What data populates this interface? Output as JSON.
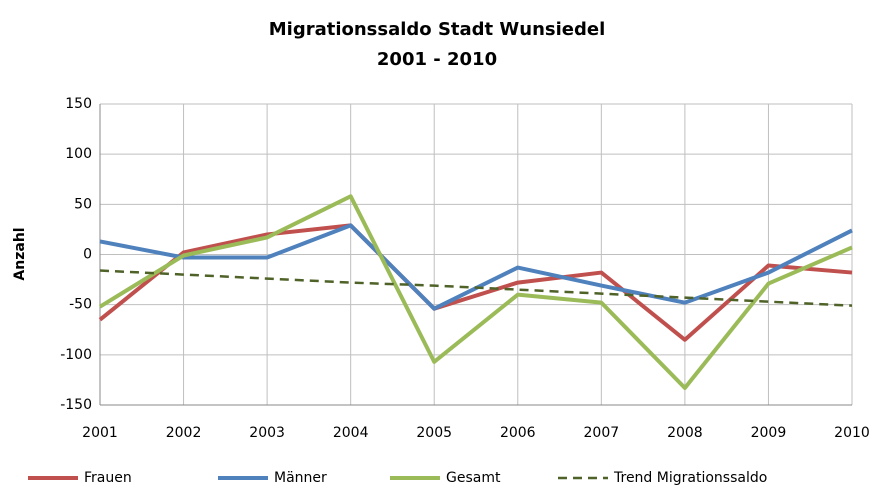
{
  "chart_data": {
    "type": "line",
    "title": "Migrationssaldo Stadt Wunsiedel",
    "subtitle": "2001 - 2010",
    "y_label": "Anzahl",
    "x": [
      2001,
      2002,
      2003,
      2004,
      2005,
      2006,
      2007,
      2008,
      2009,
      2010
    ],
    "xlim": [
      2001,
      2010
    ],
    "xticks": [
      2001,
      2002,
      2003,
      2004,
      2005,
      2006,
      2007,
      2008,
      2009,
      2010
    ],
    "ylim": [
      -150,
      150
    ],
    "yticks": [
      -150,
      -100,
      -50,
      0,
      50,
      100,
      150
    ],
    "grid": true,
    "legend": "bottom",
    "series": [
      {
        "name": "Frauen",
        "color": "#c0504d",
        "values": [
          -65,
          2,
          20,
          29,
          -54,
          -28,
          -18,
          -85,
          -11,
          -18
        ]
      },
      {
        "name": "Männer",
        "color": "#4f81bd",
        "values": [
          13,
          -3,
          -3,
          29,
          -54,
          -13,
          -31,
          -48,
          -18,
          24
        ]
      },
      {
        "name": "Gesamt",
        "color": "#9bbb59",
        "values": [
          -52,
          -1,
          17,
          58,
          -107,
          -40,
          -48,
          -133,
          -29,
          7
        ]
      },
      {
        "name": "Trend Migrationssaldo",
        "color": "#4f6228",
        "dashed": true,
        "values": [
          -16,
          -20,
          -24,
          -28,
          -31,
          -35,
          -39,
          -43,
          -47,
          -51
        ]
      }
    ]
  }
}
